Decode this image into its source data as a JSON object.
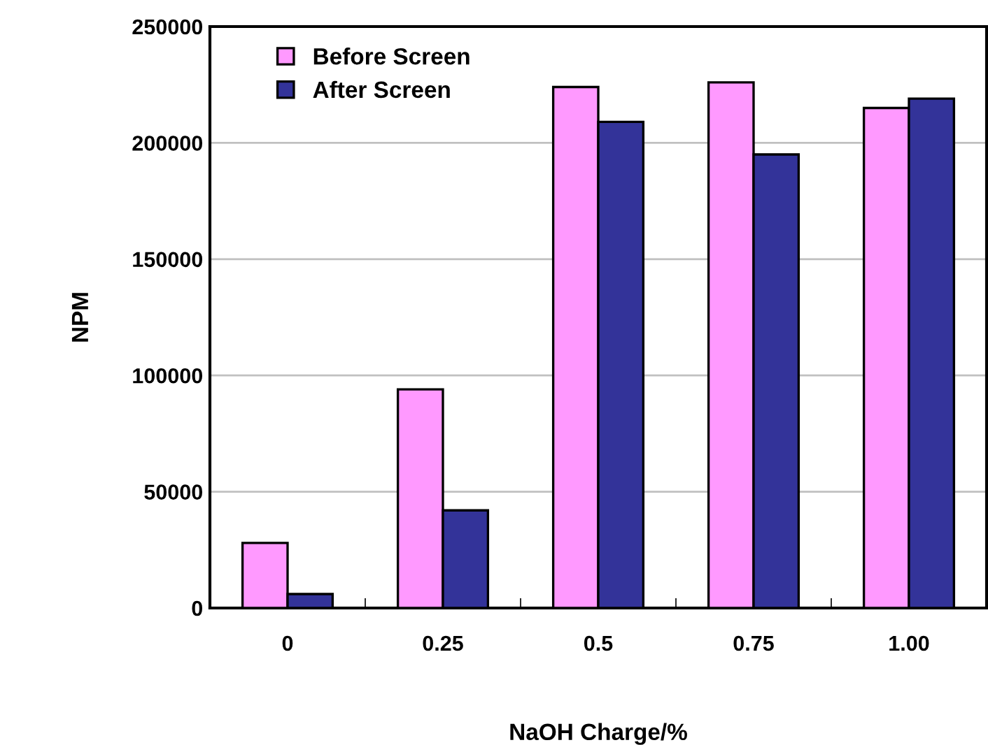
{
  "chart_data": {
    "type": "bar",
    "xlabel": "NaOH Charge/%",
    "ylabel": "NPM",
    "categories": [
      "0",
      "0.25",
      "0.5",
      "0.75",
      "1.00"
    ],
    "series": [
      {
        "name": "Before Screen",
        "color": "#ff99ff",
        "values": [
          28000,
          94000,
          224000,
          226000,
          215000
        ]
      },
      {
        "name": "After Screen",
        "color": "#333399",
        "values": [
          6000,
          42000,
          209000,
          195000,
          219000
        ]
      }
    ],
    "ylim": [
      0,
      250000
    ],
    "yticks": [
      0,
      50000,
      100000,
      150000,
      200000,
      250000
    ],
    "grid": "y",
    "legend": "top left"
  }
}
